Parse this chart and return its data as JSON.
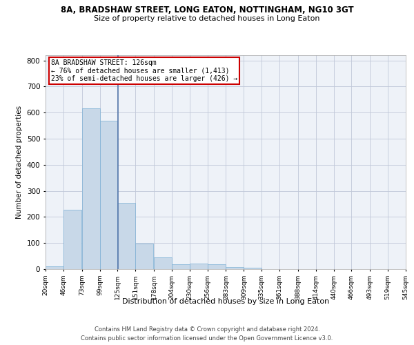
{
  "title": "8A, BRADSHAW STREET, LONG EATON, NOTTINGHAM, NG10 3GT",
  "subtitle": "Size of property relative to detached houses in Long Eaton",
  "xlabel": "Distribution of detached houses by size in Long Eaton",
  "ylabel": "Number of detached properties",
  "bar_color": "#c8d8e8",
  "bar_edge_color": "#7bafd4",
  "grid_color": "#c0c8d8",
  "background_color": "#eef2f8",
  "bin_edges": [
    20,
    46,
    73,
    99,
    125,
    151,
    178,
    204,
    230,
    256,
    283,
    309,
    335,
    361,
    388,
    414,
    440,
    466,
    493,
    519,
    545
  ],
  "bar_heights": [
    10,
    228,
    617,
    568,
    255,
    97,
    44,
    19,
    20,
    18,
    8,
    5,
    0,
    0,
    0,
    0,
    0,
    0,
    0,
    0
  ],
  "property_value": 126,
  "property_label": "8A BRADSHAW STREET: 126sqm",
  "annotation_line1": "← 76% of detached houses are smaller (1,413)",
  "annotation_line2": "23% of semi-detached houses are larger (426) →",
  "vline_color": "#5577aa",
  "annotation_box_color": "#ffffff",
  "annotation_box_edge": "#cc0000",
  "footer_line1": "Contains HM Land Registry data © Crown copyright and database right 2024.",
  "footer_line2": "Contains public sector information licensed under the Open Government Licence v3.0.",
  "ylim": [
    0,
    820
  ],
  "yticks": [
    0,
    100,
    200,
    300,
    400,
    500,
    600,
    700,
    800
  ]
}
